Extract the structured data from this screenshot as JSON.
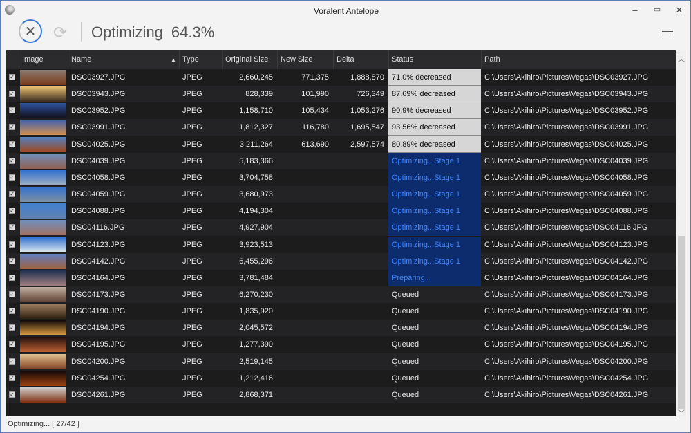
{
  "window": {
    "title": "Voralent Antelope",
    "minimize": "–",
    "maximize": "▭",
    "close": "✕"
  },
  "toolbar": {
    "cancel_icon": "✕",
    "refresh_icon": "⟳",
    "state": "Optimizing",
    "percent": "64.3%",
    "progress": 0.643
  },
  "columns": [
    "Image",
    "Name",
    "Type",
    "Original Size",
    "New Size",
    "Delta",
    "Status",
    "Path"
  ],
  "sort": {
    "column": "Name",
    "direction": "ascending",
    "icon": "▲"
  },
  "colors": {
    "done_bg": "#d6d6d6",
    "busy_bg": "#0c2c6e",
    "busy_text": "#3d85ff"
  },
  "rows": [
    {
      "name": "DSC03927.JPG",
      "type": "JPEG",
      "orig": "2,660,245",
      "new": "771,375",
      "delta": "1,888,870",
      "status": "71.0% decreased",
      "state": "done",
      "path": "C:\\Users\\Akihiro\\Pictures\\Vegas\\DSC03927.JPG",
      "thumb": [
        "#8a7a70",
        "#7a3a1a"
      ]
    },
    {
      "name": "DSC03943.JPG",
      "type": "JPEG",
      "orig": "828,339",
      "new": "101,990",
      "delta": "726,349",
      "status": "87.69% decreased",
      "state": "done",
      "path": "C:\\Users\\Akihiro\\Pictures\\Vegas\\DSC03943.JPG",
      "thumb": [
        "#e8c070",
        "#3a2a20"
      ]
    },
    {
      "name": "DSC03952.JPG",
      "type": "JPEG",
      "orig": "1,158,710",
      "new": "105,434",
      "delta": "1,053,276",
      "status": "90.9% decreased",
      "state": "done",
      "path": "C:\\Users\\Akihiro\\Pictures\\Vegas\\DSC03952.JPG",
      "thumb": [
        "#3050a0",
        "#101018"
      ]
    },
    {
      "name": "DSC03991.JPG",
      "type": "JPEG",
      "orig": "1,812,327",
      "new": "116,780",
      "delta": "1,695,547",
      "status": "93.56% decreased",
      "state": "done",
      "path": "C:\\Users\\Akihiro\\Pictures\\Vegas\\DSC03991.JPG",
      "thumb": [
        "#4060b0",
        "#d09050"
      ]
    },
    {
      "name": "DSC04025.JPG",
      "type": "JPEG",
      "orig": "3,211,264",
      "new": "613,690",
      "delta": "2,597,574",
      "status": "80.89% decreased",
      "state": "done",
      "path": "C:\\Users\\Akihiro\\Pictures\\Vegas\\DSC04025.JPG",
      "thumb": [
        "#5080c0",
        "#a04820"
      ]
    },
    {
      "name": "DSC04039.JPG",
      "type": "JPEG",
      "orig": "5,183,366",
      "new": "",
      "delta": "",
      "status": "Optimizing...Stage 1",
      "state": "busy",
      "path": "C:\\Users\\Akihiro\\Pictures\\Vegas\\DSC04039.JPG",
      "thumb": [
        "#7090c0",
        "#906050"
      ]
    },
    {
      "name": "DSC04058.JPG",
      "type": "JPEG",
      "orig": "3,704,758",
      "new": "",
      "delta": "",
      "status": "Optimizing...Stage 1",
      "state": "busy",
      "path": "C:\\Users\\Akihiro\\Pictures\\Vegas\\DSC04058.JPG",
      "thumb": [
        "#3070d0",
        "#a0b0c0"
      ]
    },
    {
      "name": "DSC04059.JPG",
      "type": "JPEG",
      "orig": "3,680,973",
      "new": "",
      "delta": "",
      "status": "Optimizing...Stage 1",
      "state": "busy",
      "path": "C:\\Users\\Akihiro\\Pictures\\Vegas\\DSC04059.JPG",
      "thumb": [
        "#3070d0",
        "#8090a0"
      ]
    },
    {
      "name": "DSC04088.JPG",
      "type": "JPEG",
      "orig": "4,194,304",
      "new": "",
      "delta": "",
      "status": "Optimizing...Stage 1",
      "state": "busy",
      "path": "C:\\Users\\Akihiro\\Pictures\\Vegas\\DSC04088.JPG",
      "thumb": [
        "#4080d0",
        "#6080b0"
      ]
    },
    {
      "name": "DSC04116.JPG",
      "type": "JPEG",
      "orig": "4,927,904",
      "new": "",
      "delta": "",
      "status": "Optimizing...Stage 1",
      "state": "busy",
      "path": "C:\\Users\\Akihiro\\Pictures\\Vegas\\DSC04116.JPG",
      "thumb": [
        "#7090c0",
        "#a07060"
      ]
    },
    {
      "name": "DSC04123.JPG",
      "type": "JPEG",
      "orig": "3,923,513",
      "new": "",
      "delta": "",
      "status": "Optimizing...Stage 1",
      "state": "busy",
      "path": "C:\\Users\\Akihiro\\Pictures\\Vegas\\DSC04123.JPG",
      "thumb": [
        "#3070d0",
        "#e0e8f0"
      ]
    },
    {
      "name": "DSC04142.JPG",
      "type": "JPEG",
      "orig": "6,455,296",
      "new": "",
      "delta": "",
      "status": "Optimizing...Stage 1",
      "state": "busy",
      "path": "C:\\Users\\Akihiro\\Pictures\\Vegas\\DSC04142.JPG",
      "thumb": [
        "#6080c0",
        "#a06040"
      ]
    },
    {
      "name": "DSC04164.JPG",
      "type": "JPEG",
      "orig": "3,781,484",
      "new": "",
      "delta": "",
      "status": "Preparing...",
      "state": "busy",
      "path": "C:\\Users\\Akihiro\\Pictures\\Vegas\\DSC04164.JPG",
      "thumb": [
        "#203050",
        "#a08080"
      ]
    },
    {
      "name": "DSC04173.JPG",
      "type": "JPEG",
      "orig": "6,270,230",
      "new": "",
      "delta": "",
      "status": "Queued",
      "state": "queued",
      "path": "C:\\Users\\Akihiro\\Pictures\\Vegas\\DSC04173.JPG",
      "thumb": [
        "#c0b0a0",
        "#604030"
      ]
    },
    {
      "name": "DSC04190.JPG",
      "type": "JPEG",
      "orig": "1,835,920",
      "new": "",
      "delta": "",
      "status": "Queued",
      "state": "queued",
      "path": "C:\\Users\\Akihiro\\Pictures\\Vegas\\DSC04190.JPG",
      "thumb": [
        "#a08060",
        "#302010"
      ]
    },
    {
      "name": "DSC04194.JPG",
      "type": "JPEG",
      "orig": "2,045,572",
      "new": "",
      "delta": "",
      "status": "Queued",
      "state": "queued",
      "path": "C:\\Users\\Akihiro\\Pictures\\Vegas\\DSC04194.JPG",
      "thumb": [
        "#100808",
        "#e0a040"
      ]
    },
    {
      "name": "DSC04195.JPG",
      "type": "JPEG",
      "orig": "1,277,390",
      "new": "",
      "delta": "",
      "status": "Queued",
      "state": "queued",
      "path": "C:\\Users\\Akihiro\\Pictures\\Vegas\\DSC04195.JPG",
      "thumb": [
        "#201010",
        "#c06030"
      ]
    },
    {
      "name": "DSC04200.JPG",
      "type": "JPEG",
      "orig": "2,519,145",
      "new": "",
      "delta": "",
      "status": "Queued",
      "state": "queued",
      "path": "C:\\Users\\Akihiro\\Pictures\\Vegas\\DSC04200.JPG",
      "thumb": [
        "#e0c090",
        "#804020"
      ]
    },
    {
      "name": "DSC04254.JPG",
      "type": "JPEG",
      "orig": "1,212,416",
      "new": "",
      "delta": "",
      "status": "Queued",
      "state": "queued",
      "path": "C:\\Users\\Akihiro\\Pictures\\Vegas\\DSC04254.JPG",
      "thumb": [
        "#100808",
        "#a04010"
      ]
    },
    {
      "name": "DSC04261.JPG",
      "type": "JPEG",
      "orig": "2,868,371",
      "new": "",
      "delta": "",
      "status": "Queued",
      "state": "queued",
      "path": "C:\\Users\\Akihiro\\Pictures\\Vegas\\DSC04261.JPG",
      "thumb": [
        "#d0d0d0",
        "#803010"
      ]
    }
  ],
  "statusbar": {
    "text": "Optimizing... [ 27/42 ]"
  }
}
